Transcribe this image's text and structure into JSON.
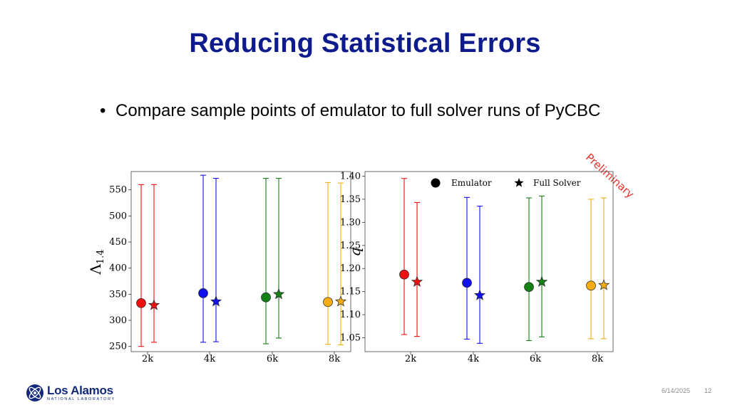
{
  "slide": {
    "title": "Reducing Statistical Errors",
    "bullet": "Compare sample points of emulator to full solver runs of PyCBC",
    "stamp": "Preliminary",
    "date": "6/14/2025",
    "page": "12",
    "logo_name": "Los Alamos",
    "logo_sub": "NATIONAL LABORATORY"
  },
  "colors": {
    "title": "#0d1b8c",
    "red": "#ee1111",
    "blue": "#1111ee",
    "green": "#158015",
    "orange": "#f5ad15",
    "stamp": "#e8312a"
  },
  "chart_data": [
    {
      "type": "scatter",
      "ylabel": "Λ1.4",
      "ylabel_main": "Λ",
      "ylabel_sub": "1.4",
      "categories": [
        "2k",
        "4k",
        "6k",
        "8k"
      ],
      "yticks": [
        250,
        300,
        350,
        400,
        450,
        500,
        550
      ],
      "ylim": [
        240,
        585
      ],
      "series": [
        {
          "marker": "circle",
          "values": [
            333,
            352,
            344,
            335
          ],
          "lower": [
            250,
            258,
            255,
            254
          ],
          "upper": [
            560,
            578,
            572,
            564
          ]
        },
        {
          "marker": "star",
          "values": [
            329,
            336,
            350,
            336
          ],
          "lower": [
            258,
            259,
            266,
            253
          ],
          "upper": [
            560,
            572,
            572,
            563
          ]
        }
      ],
      "point_colors": [
        "red",
        "blue",
        "green",
        "orange"
      ],
      "grid": false,
      "legend": null
    },
    {
      "type": "scatter",
      "ylabel": "q",
      "categories": [
        "2k",
        "4k",
        "6k",
        "8k"
      ],
      "yticks": [
        1.05,
        1.1,
        1.15,
        1.2,
        1.25,
        1.3,
        1.35,
        1.4
      ],
      "ylim": [
        1.02,
        1.41
      ],
      "series": [
        {
          "name": "Emulator",
          "marker": "circle",
          "values": [
            1.187,
            1.169,
            1.16,
            1.163
          ],
          "lower": [
            1.057,
            1.047,
            1.044,
            1.048
          ],
          "upper": [
            1.395,
            1.354,
            1.353,
            1.35
          ]
        },
        {
          "name": "Full Solver",
          "marker": "star",
          "values": [
            1.171,
            1.142,
            1.171,
            1.164
          ],
          "lower": [
            1.053,
            1.038,
            1.052,
            1.048
          ],
          "upper": [
            1.343,
            1.335,
            1.357,
            1.353
          ]
        }
      ],
      "point_colors": [
        "red",
        "blue",
        "green",
        "orange"
      ],
      "grid": false,
      "legend": "top"
    }
  ]
}
